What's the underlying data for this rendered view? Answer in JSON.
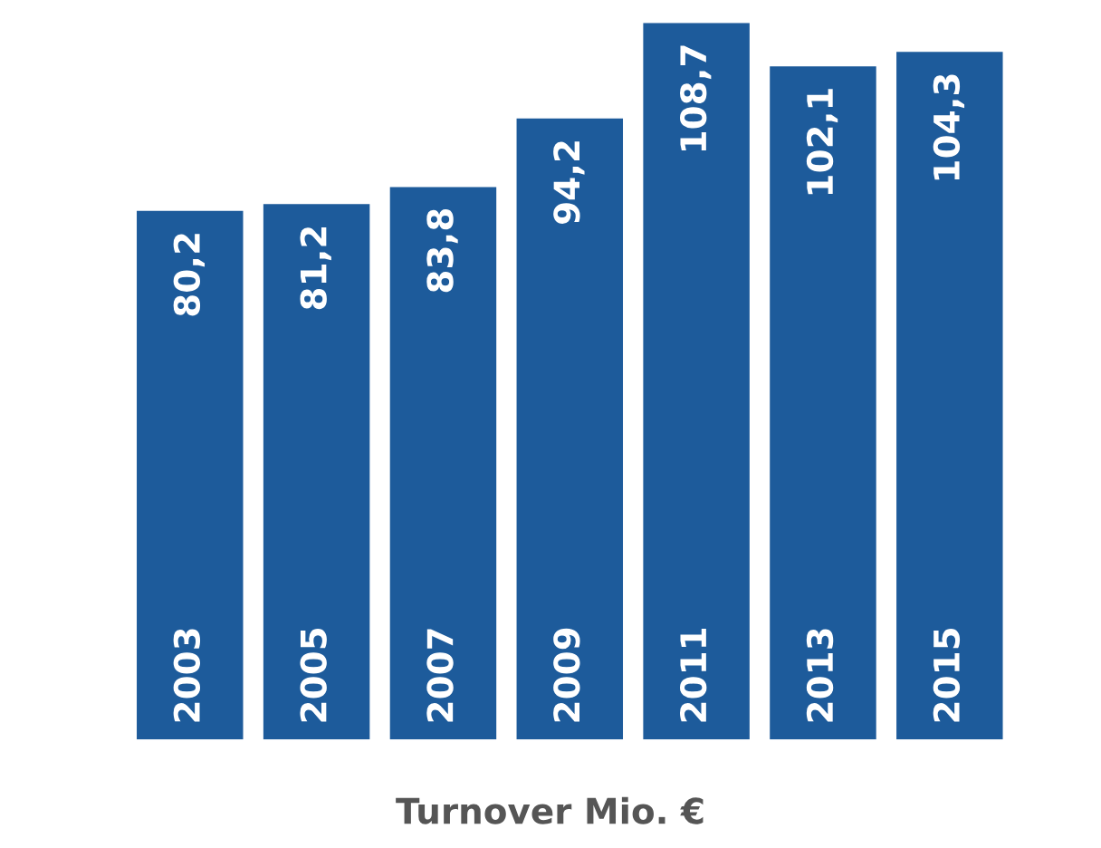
{
  "chart_data": {
    "type": "bar",
    "title": "Turnover Mio. €",
    "categories": [
      "2003",
      "2005",
      "2007",
      "2009",
      "2011",
      "2013",
      "2015"
    ],
    "values": [
      80.2,
      81.2,
      83.8,
      94.2,
      108.7,
      102.1,
      104.3
    ],
    "value_labels": [
      "80,2",
      "81,2",
      "83,8",
      "94,2",
      "108,7",
      "102,1",
      "104,3"
    ],
    "color": "#1d5b9b"
  }
}
